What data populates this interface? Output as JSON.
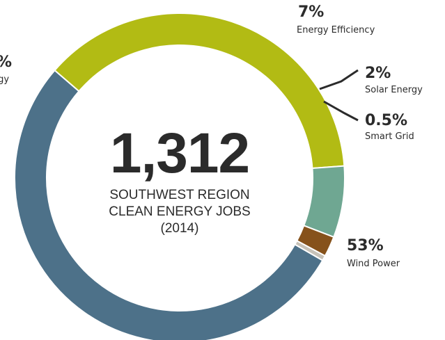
{
  "chart_data": {
    "type": "pie",
    "center": {
      "number": "1,312",
      "caption_lines": [
        "SOUTHWEST REGION",
        "CLEAN ENERGY JOBS",
        "(2014)"
      ]
    },
    "slices": [
      {
        "pct_text": "53%",
        "label": "Wind Power",
        "value": 53,
        "color": "#4d7189"
      },
      {
        "pct_text": "%",
        "label": "rgy",
        "value": 37.5,
        "color": "#b2bb14"
      },
      {
        "pct_text": "7%",
        "label": "Energy Efficiency",
        "value": 7,
        "color": "#6fa792"
      },
      {
        "pct_text": "2%",
        "label": "Solar Energy",
        "value": 2,
        "color": "#86521b"
      },
      {
        "pct_text": "0.5%",
        "label": "Smart Grid",
        "value": 0.5,
        "color": "#c7c2b8"
      }
    ]
  }
}
